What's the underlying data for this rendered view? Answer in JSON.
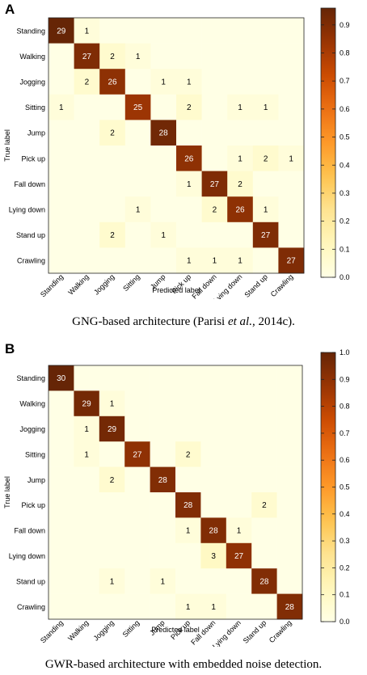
{
  "chart_data": [
    {
      "type": "heatmap",
      "panel_label": "A",
      "caption": {
        "prefix": "GNG-based architecture (Parisi ",
        "italic": "et al.",
        "suffix": ", 2014c)."
      },
      "xlabel": "Predicted label",
      "ylabel": "True label",
      "classes": [
        "Standing",
        "Walking",
        "Jogging",
        "Sitting",
        "Jump",
        "Pick up",
        "Fall down",
        "Lying down",
        "Stand up",
        "Crawling"
      ],
      "matrix": [
        [
          29,
          1,
          0,
          0,
          0,
          0,
          0,
          0,
          0,
          0
        ],
        [
          0,
          27,
          2,
          1,
          0,
          0,
          0,
          0,
          0,
          0
        ],
        [
          0,
          2,
          26,
          0,
          1,
          1,
          0,
          0,
          0,
          0
        ],
        [
          1,
          0,
          0,
          25,
          0,
          2,
          0,
          1,
          1,
          0
        ],
        [
          0,
          0,
          2,
          0,
          28,
          0,
          0,
          0,
          0,
          0
        ],
        [
          0,
          0,
          0,
          0,
          0,
          26,
          0,
          1,
          2,
          1
        ],
        [
          0,
          0,
          0,
          0,
          0,
          1,
          27,
          2,
          0,
          0
        ],
        [
          0,
          0,
          0,
          1,
          0,
          0,
          2,
          26,
          1,
          0
        ],
        [
          0,
          0,
          2,
          0,
          1,
          0,
          0,
          0,
          27,
          0
        ],
        [
          0,
          0,
          0,
          0,
          0,
          1,
          1,
          1,
          0,
          27
        ]
      ],
      "colorbar": {
        "range": [
          0,
          0.96
        ],
        "ticks": [
          "0.0",
          "0.1",
          "0.2",
          "0.3",
          "0.4",
          "0.5",
          "0.6",
          "0.7",
          "0.8",
          "0.9"
        ]
      },
      "colormap": "YlOrBr"
    },
    {
      "type": "heatmap",
      "panel_label": "B",
      "caption": {
        "prefix": "GWR-based architecture with embedded noise detection.",
        "italic": "",
        "suffix": ""
      },
      "xlabel": "Predicted label",
      "ylabel": "True label",
      "classes": [
        "Standing",
        "Walking",
        "Jogging",
        "Sitting",
        "Jump",
        "Pick up",
        "Fall down",
        "Lying down",
        "Stand up",
        "Crawling"
      ],
      "matrix": [
        [
          30,
          0,
          0,
          0,
          0,
          0,
          0,
          0,
          0,
          0
        ],
        [
          0,
          29,
          1,
          0,
          0,
          0,
          0,
          0,
          0,
          0
        ],
        [
          0,
          1,
          29,
          0,
          0,
          0,
          0,
          0,
          0,
          0
        ],
        [
          0,
          1,
          0,
          27,
          0,
          2,
          0,
          0,
          0,
          0
        ],
        [
          0,
          0,
          2,
          0,
          28,
          0,
          0,
          0,
          0,
          0
        ],
        [
          0,
          0,
          0,
          0,
          0,
          28,
          0,
          0,
          2,
          0
        ],
        [
          0,
          0,
          0,
          0,
          0,
          1,
          28,
          1,
          0,
          0
        ],
        [
          0,
          0,
          0,
          0,
          0,
          0,
          3,
          27,
          0,
          0
        ],
        [
          0,
          0,
          1,
          0,
          1,
          0,
          0,
          0,
          28,
          0
        ],
        [
          0,
          0,
          0,
          0,
          0,
          1,
          1,
          0,
          0,
          28
        ]
      ],
      "colorbar": {
        "range": [
          0,
          1.0
        ],
        "ticks": [
          "0.0",
          "0.1",
          "0.2",
          "0.3",
          "0.4",
          "0.5",
          "0.6",
          "0.7",
          "0.8",
          "0.9",
          "1.0"
        ]
      },
      "colormap": "YlOrBr"
    }
  ]
}
